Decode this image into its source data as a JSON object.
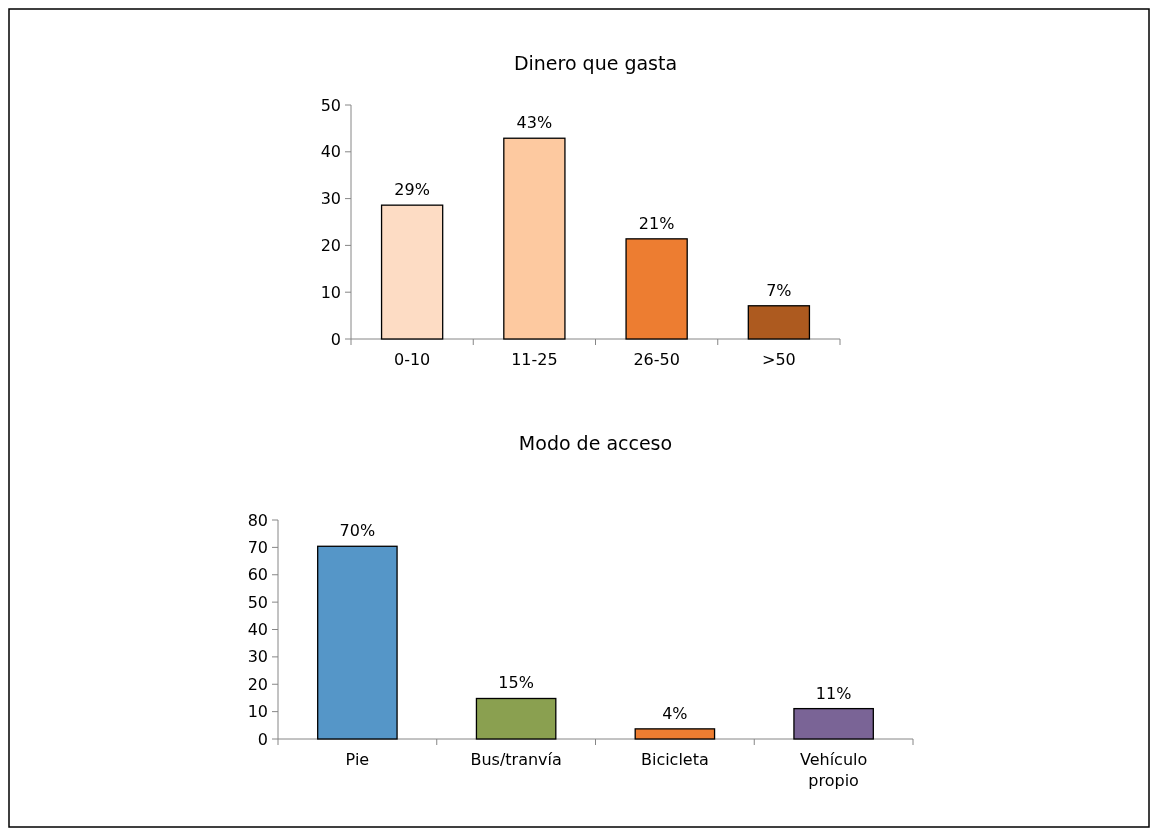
{
  "chart_data": [
    {
      "type": "bar",
      "title": "Dinero que gasta",
      "categories": [
        "0-10",
        "11-25",
        "26-50",
        ">50"
      ],
      "values": [
        28.6,
        42.9,
        21.4,
        7.1
      ],
      "colors": [
        "#fddcc4",
        "#fdc9a0",
        "#ed7d31",
        "#ad5a1f"
      ],
      "value_labels": [
        "29%",
        "43%",
        "21%",
        "7%"
      ],
      "ylim": [
        0,
        50
      ],
      "yticks": [
        0,
        10,
        20,
        30,
        40,
        50
      ],
      "grid": false
    },
    {
      "type": "bar",
      "title": "Modo de acceso",
      "categories": [
        "Pie",
        "Bus/tranvía",
        "Bicicleta",
        "Vehículo propio"
      ],
      "values": [
        70.4,
        14.8,
        3.7,
        11.1
      ],
      "colors": [
        "#5596c8",
        "#8aa050",
        "#ed7d31",
        "#7a6496"
      ],
      "value_labels": [
        "70%",
        "15%",
        "4%",
        "11%"
      ],
      "ylim": [
        0,
        80
      ],
      "yticks": [
        0,
        10,
        20,
        30,
        40,
        50,
        60,
        70,
        80
      ],
      "grid": false
    }
  ]
}
